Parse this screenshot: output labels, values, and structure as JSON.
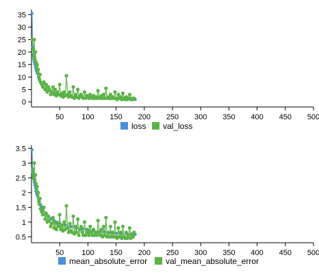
{
  "chart_data": [
    {
      "type": "line",
      "title": "",
      "xlabel": "",
      "ylabel": "",
      "xlim": [
        0,
        500
      ],
      "ylim": [
        -2,
        37
      ],
      "x_ticks": [
        50,
        100,
        150,
        200,
        250,
        300,
        350,
        400,
        450,
        500
      ],
      "x_tick_labels": [
        "50",
        "100",
        "150",
        "200",
        "250",
        "300",
        "350",
        "400",
        "450",
        "500"
      ],
      "y_ticks": [
        0,
        5,
        10,
        15,
        20,
        25,
        30,
        35
      ],
      "y_tick_labels": [
        "0",
        "5",
        "10",
        "15",
        "20",
        "25",
        "30",
        "35"
      ],
      "grid": false,
      "legend_position": "bottom",
      "series": [
        {
          "name": "loss",
          "color": "#4a90d9",
          "x": [
            1,
            2,
            3,
            4,
            5,
            6,
            7,
            8,
            9,
            10,
            12,
            14,
            16,
            18,
            20,
            25,
            30,
            35,
            40,
            45,
            50,
            60,
            70,
            80,
            90,
            100,
            110,
            120,
            130,
            140,
            150,
            160,
            170,
            180,
            184
          ],
          "values": [
            35.5,
            22,
            19,
            17,
            16,
            15,
            14,
            13,
            12.5,
            11.5,
            10,
            8.8,
            7.8,
            7,
            6.3,
            5.2,
            4.5,
            3.9,
            3.5,
            3.2,
            2.9,
            2.6,
            2.3,
            2.1,
            1.9,
            1.8,
            1.6,
            1.5,
            1.4,
            1.3,
            1.2,
            1.1,
            1.05,
            1.0,
            1.0
          ]
        },
        {
          "name": "val_loss",
          "color": "#5bb346",
          "x": [
            2,
            3,
            4,
            5,
            6,
            7,
            8,
            9,
            10,
            11,
            12,
            13,
            14,
            15,
            16,
            18,
            20,
            22,
            24,
            26,
            28,
            30,
            32,
            34,
            36,
            38,
            40,
            42,
            44,
            46,
            48,
            50,
            52,
            54,
            56,
            58,
            60,
            62,
            64,
            66,
            68,
            70,
            72,
            74,
            76,
            78,
            80,
            82,
            84,
            86,
            88,
            90,
            92,
            94,
            96,
            98,
            100,
            102,
            104,
            106,
            108,
            110,
            112,
            114,
            116,
            118,
            120,
            122,
            124,
            126,
            128,
            130,
            132,
            134,
            136,
            138,
            140,
            142,
            144,
            146,
            148,
            150,
            152,
            154,
            156,
            158,
            160,
            162,
            164,
            166,
            168,
            170,
            172,
            174,
            176,
            178,
            180,
            182
          ],
          "values": [
            25,
            21,
            18,
            25,
            17,
            20,
            16,
            14,
            15,
            12,
            13,
            10,
            9,
            11,
            8,
            7,
            6,
            8,
            5,
            7,
            4,
            6,
            5,
            3,
            4,
            6,
            3,
            5,
            2.5,
            4,
            3,
            7,
            2.5,
            3.5,
            2,
            4,
            2.5,
            10.5,
            3,
            2,
            4,
            2.5,
            2,
            6,
            1.5,
            3,
            2,
            5,
            1.5,
            2.5,
            3,
            2,
            1.5,
            4,
            1.5,
            2.5,
            2,
            1.5,
            3,
            2,
            1.5,
            2.5,
            1.5,
            2,
            1.5,
            4.5,
            2,
            1.5,
            2.5,
            1.5,
            3,
            1.5,
            5.5,
            1.5,
            2,
            1.5,
            3,
            1.5,
            2,
            1.5,
            4,
            1.5,
            1,
            3,
            1.5,
            2,
            1,
            3.5,
            1.5,
            1,
            2,
            1,
            1.5,
            3,
            1,
            1.5,
            1,
            1.5
          ]
        }
      ]
    },
    {
      "type": "line",
      "title": "",
      "xlabel": "",
      "ylabel": "",
      "xlim": [
        0,
        500
      ],
      "ylim": [
        0.3,
        3.6
      ],
      "x_ticks": [
        50,
        100,
        150,
        200,
        250,
        300,
        350,
        400,
        450,
        500
      ],
      "x_tick_labels": [
        "50",
        "100",
        "150",
        "200",
        "250",
        "300",
        "350",
        "400",
        "450",
        "500"
      ],
      "y_ticks": [
        0.5,
        1,
        1.5,
        2,
        2.5,
        3,
        3.5
      ],
      "y_tick_labels": [
        "0.5",
        "1",
        "1.5",
        "2",
        "2.5",
        "3",
        "3.5"
      ],
      "grid": false,
      "legend_position": "bottom",
      "series": [
        {
          "name": "mean_absolute_error",
          "color": "#4a90d9",
          "x": [
            1,
            2,
            3,
            4,
            5,
            6,
            7,
            8,
            9,
            10,
            12,
            14,
            16,
            18,
            20,
            25,
            30,
            35,
            40,
            45,
            50,
            60,
            70,
            80,
            90,
            100,
            110,
            120,
            130,
            140,
            150,
            160,
            170,
            180,
            184
          ],
          "values": [
            3.45,
            2.7,
            2.55,
            2.45,
            2.35,
            2.25,
            2.15,
            2.05,
            1.98,
            1.9,
            1.8,
            1.7,
            1.6,
            1.52,
            1.45,
            1.3,
            1.2,
            1.12,
            1.05,
            1.0,
            0.96,
            0.9,
            0.85,
            0.8,
            0.77,
            0.74,
            0.71,
            0.68,
            0.66,
            0.64,
            0.62,
            0.6,
            0.59,
            0.58,
            0.58
          ]
        },
        {
          "name": "val_mean_absolute_error",
          "color": "#5bb346",
          "x": [
            2,
            3,
            4,
            5,
            6,
            7,
            8,
            9,
            10,
            11,
            12,
            13,
            14,
            15,
            16,
            18,
            20,
            22,
            24,
            26,
            28,
            30,
            32,
            34,
            36,
            38,
            40,
            42,
            44,
            46,
            48,
            50,
            52,
            54,
            56,
            58,
            60,
            62,
            64,
            66,
            68,
            70,
            72,
            74,
            76,
            78,
            80,
            82,
            84,
            86,
            88,
            90,
            92,
            94,
            96,
            98,
            100,
            102,
            104,
            106,
            108,
            110,
            112,
            114,
            116,
            118,
            120,
            122,
            124,
            126,
            128,
            130,
            132,
            134,
            136,
            138,
            140,
            142,
            144,
            146,
            148,
            150,
            152,
            154,
            156,
            158,
            160,
            162,
            164,
            166,
            168,
            170,
            172,
            174,
            176,
            178,
            180,
            182
          ],
          "values": [
            2.8,
            2.65,
            2.5,
            3.0,
            2.4,
            2.6,
            2.3,
            2.1,
            2.2,
            1.9,
            2.0,
            1.7,
            1.6,
            1.8,
            1.45,
            1.35,
            1.25,
            1.5,
            1.1,
            1.3,
            1.0,
            1.2,
            1.05,
            0.85,
            0.95,
            1.15,
            0.8,
            1.0,
            0.75,
            0.95,
            0.85,
            1.25,
            0.75,
            0.9,
            0.7,
            1.0,
            0.75,
            1.55,
            0.8,
            0.65,
            0.95,
            0.7,
            0.65,
            1.2,
            0.6,
            0.85,
            0.65,
            1.1,
            0.55,
            0.75,
            0.85,
            0.65,
            0.55,
            1.0,
            0.55,
            0.75,
            0.65,
            0.55,
            0.85,
            0.65,
            0.55,
            0.75,
            0.55,
            0.65,
            0.55,
            1.05,
            0.65,
            0.55,
            0.75,
            0.5,
            0.85,
            0.55,
            1.15,
            0.5,
            0.65,
            0.5,
            0.85,
            0.5,
            0.65,
            0.5,
            1.0,
            0.5,
            0.45,
            0.8,
            0.5,
            0.65,
            0.45,
            0.85,
            0.5,
            0.45,
            0.65,
            0.45,
            0.55,
            0.8,
            0.45,
            0.6,
            0.5,
            0.65
          ]
        }
      ]
    }
  ]
}
